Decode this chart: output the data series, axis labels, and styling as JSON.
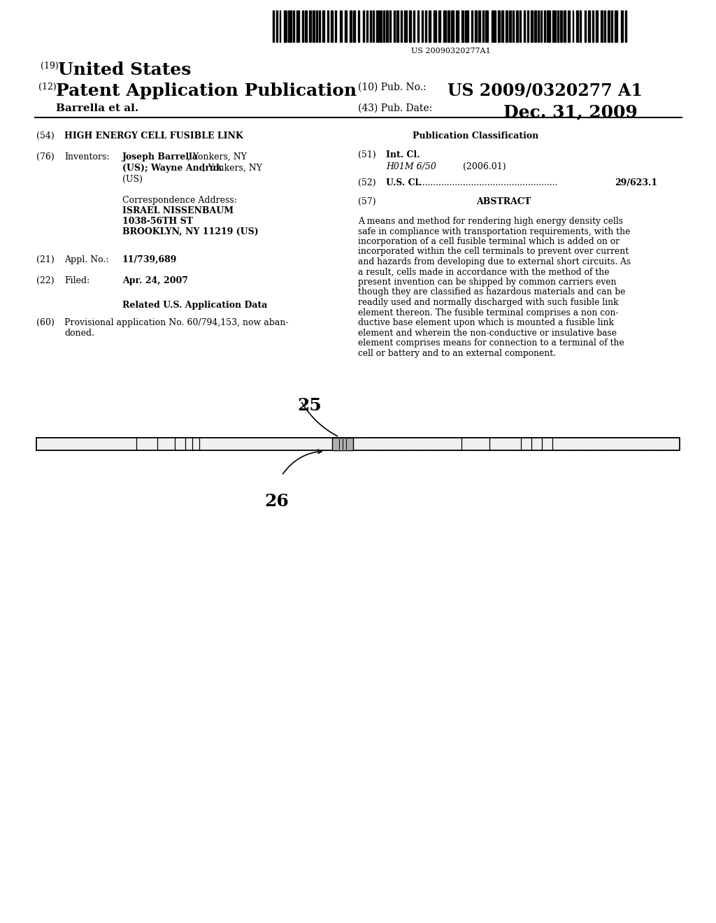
{
  "bg_color": "#ffffff",
  "barcode_text": "US 20090320277A1",
  "title_19": "(19)",
  "title_19b": "United States",
  "title_12": "(12)",
  "title_12b": "Patent Application Publication",
  "pub_no_label": "(10) Pub. No.:",
  "pub_no": "US 2009/0320277 A1",
  "pub_date_label": "(43) Pub. Date:",
  "pub_date": "Dec. 31, 2009",
  "author": "Barrella et al.",
  "field54_label": "(54)",
  "field54": "HIGH ENERGY CELL FUSIBLE LINK",
  "field76_label": "(76)",
  "field76_name": "Inventors:",
  "inv_line1_bold": "Joseph Barrella",
  "inv_line1_norm": ", Yonkers, NY",
  "inv_line2_bold": "(US); Wayne Andruk",
  "inv_line2_norm": ", Yonkers, NY",
  "inv_line3": "(US)",
  "corr_label": "Correspondence Address:",
  "corr_name": "ISRAEL NISSENBAUM",
  "corr_addr1": "1038-56TH ST",
  "corr_addr2": "BROOKLYN, NY 11219 (US)",
  "field21_label": "(21)",
  "field21_name": "Appl. No.:",
  "field21_value": "11/739,689",
  "field22_label": "(22)",
  "field22_name": "Filed:",
  "field22_value": "Apr. 24, 2007",
  "related_header": "Related U.S. Application Data",
  "field60_label": "(60)",
  "field60_line1": "Provisional application No. 60/794,153, now aban-",
  "field60_line2": "doned.",
  "pub_class_header": "Publication Classification",
  "field51_label": "(51)",
  "field51_name": "Int. Cl.",
  "field51_class": "H01M 6/50",
  "field51_year": "(2006.01)",
  "field52_label": "(52)",
  "field52_name": "U.S. Cl.",
  "field52_dots": " ....................................................",
  "field52_value": "29/623.1",
  "field57_label": "(57)",
  "field57_name": "ABSTRACT",
  "abstract_lines": [
    "A means and method for rendering high energy density cells",
    "safe in compliance with transportation requirements, with the",
    "incorporation of a cell fusible terminal which is added on or",
    "incorporated within the cell terminals to prevent over current",
    "and hazards from developing due to external short circuits. As",
    "a result, cells made in accordance with the method of the",
    "present invention can be shipped by common carriers even",
    "though they are classified as hazardous materials and can be",
    "readily used and normally discharged with such fusible link",
    "element thereon. The fusible terminal comprises a non con-",
    "ductive base element upon which is mounted a fusible link",
    "element and wherein the non-conductive or insulative base",
    "element comprises means for connection to a terminal of the",
    "cell or battery and to an external component."
  ],
  "label25": "25",
  "label26": "26"
}
